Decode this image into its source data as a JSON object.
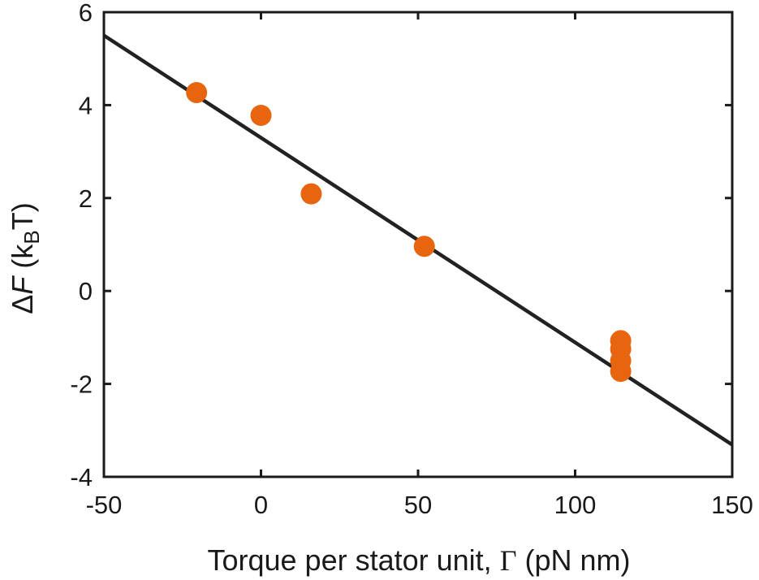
{
  "chart_data": {
    "type": "scatter",
    "title": "",
    "xlabel": "Torque per stator unit, Γ (pN nm)",
    "xlabel_parts": {
      "text": "Torque per stator unit, ",
      "symbol": "Γ",
      "unit": " (pN nm)"
    },
    "ylabel": "Δ F (kBT)",
    "ylabel_parts": {
      "delta": "Δ",
      "var": "F",
      "open": " (k",
      "sub": "B",
      "close": "T)"
    },
    "xlim": [
      -50,
      150
    ],
    "ylim": [
      -4,
      6
    ],
    "xticks": [
      "-50",
      "0",
      "50",
      "100",
      "150"
    ],
    "yticks": [
      "-4",
      "-2",
      "0",
      "2",
      "4",
      "6"
    ],
    "grid": false,
    "colors": {
      "points": "#e8650f",
      "fit_line": "#222222",
      "axes": "#1a1a1a"
    },
    "series": [
      {
        "kind": "points",
        "x": [
          -20.5,
          0,
          16,
          52,
          114.5,
          114.5,
          114.5,
          114.5
        ],
        "y": [
          4.27,
          3.78,
          2.09,
          0.96,
          -1.07,
          -1.25,
          -1.5,
          -1.73
        ]
      },
      {
        "kind": "fit-line",
        "x": [
          -50,
          150
        ],
        "y": [
          5.5,
          -3.31
        ]
      }
    ]
  }
}
